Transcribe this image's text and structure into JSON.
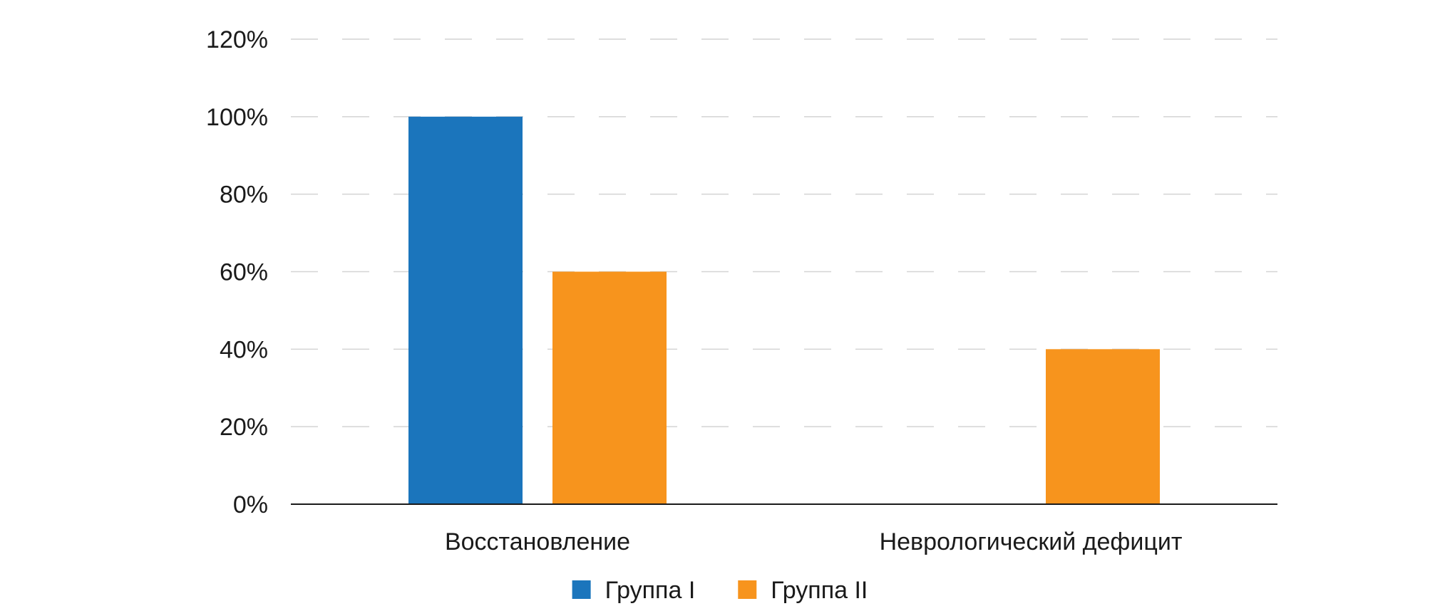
{
  "chart_data": {
    "type": "bar",
    "categories": [
      "Восстановление",
      "Неврологический дефицит"
    ],
    "series": [
      {
        "name": "Группа I",
        "values": [
          100,
          0
        ],
        "color": "#1b75bc"
      },
      {
        "name": "Группа II",
        "values": [
          60,
          40
        ],
        "color": "#f7941d"
      }
    ],
    "yticks": [
      "0%",
      "20%",
      "40%",
      "60%",
      "80%",
      "100%",
      "120%"
    ],
    "ylim": [
      0,
      120
    ],
    "grid": true,
    "legend": "bottom-center"
  }
}
